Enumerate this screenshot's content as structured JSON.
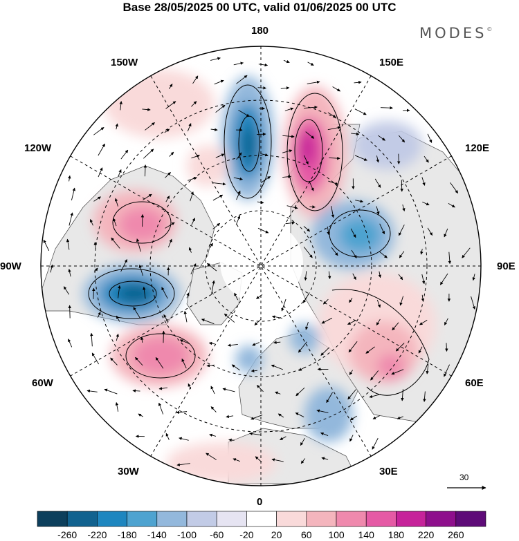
{
  "title": "Base 28/05/2025 00 UTC, valid 01/06/2025 00 UTC",
  "brand": {
    "text": "MODES",
    "mark": "©"
  },
  "longitude_labels": {
    "lon_180": "180",
    "lon_150e": "150E",
    "lon_120e": "120E",
    "lon_90e": "90E",
    "lon_60e": "60E",
    "lon_30e": "30E",
    "lon_0": "0",
    "lon_30w": "30W",
    "lon_60w": "60W",
    "lon_90w": "90W",
    "lon_120w": "120W",
    "lon_150w": "150W"
  },
  "vector_scale": {
    "value": "30"
  },
  "colorbar": {
    "labels": [
      "-260",
      "-220",
      "-180",
      "-140",
      "-100",
      "-60",
      "-20",
      "20",
      "60",
      "100",
      "140",
      "180",
      "220",
      "260"
    ],
    "colors": [
      "#0d3f5c",
      "#11628f",
      "#1e86bf",
      "#4ea3d0",
      "#93b8dc",
      "#c2cbe6",
      "#e6e4f2",
      "#ffffff",
      "#f9dada",
      "#f4b5bd",
      "#ef89ad",
      "#e55aa5",
      "#c6239a",
      "#8e0f8c",
      "#5e0b78"
    ]
  },
  "colors": {
    "land": "#e8e8e8",
    "ocean": "#ffffff",
    "polar": "#ffffff"
  }
}
